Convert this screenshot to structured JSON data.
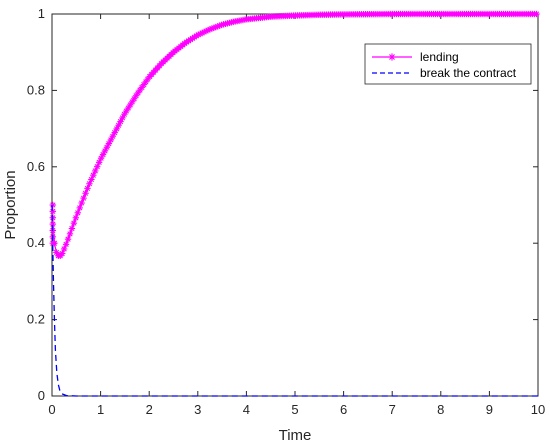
{
  "chart_data": {
    "type": "line",
    "title": "",
    "xlabel": "Time",
    "ylabel": "Proportion",
    "xlim": [
      0,
      10
    ],
    "ylim": [
      0,
      1
    ],
    "xticks": [
      0,
      1,
      2,
      3,
      4,
      5,
      6,
      7,
      8,
      9,
      10
    ],
    "xtick_labels": [
      "0",
      "1",
      "2",
      "3",
      "4",
      "5",
      "6",
      "7",
      "8",
      "9",
      "10"
    ],
    "yticks": [
      0,
      0.2,
      0.4,
      0.6,
      0.8,
      1
    ],
    "ytick_labels": [
      "0",
      "0.2",
      "0.4",
      "0.6",
      "0.8",
      "1"
    ],
    "grid": false,
    "legend_position": "top-right",
    "series": [
      {
        "name": "lending",
        "color": "#ff00ff",
        "line_style": "solid",
        "marker": "asterisk",
        "x": [
          0,
          0.05,
          0.1,
          0.15,
          0.2,
          0.3,
          0.5,
          0.75,
          1,
          1.25,
          1.5,
          1.75,
          2,
          2.25,
          2.5,
          2.75,
          3,
          3.25,
          3.5,
          3.75,
          4,
          4.5,
          5,
          5.5,
          6,
          7,
          8,
          9,
          10
        ],
        "y": [
          0.5,
          0.4,
          0.37,
          0.365,
          0.37,
          0.4,
          0.47,
          0.55,
          0.62,
          0.68,
          0.74,
          0.79,
          0.835,
          0.87,
          0.9,
          0.925,
          0.945,
          0.96,
          0.972,
          0.98,
          0.986,
          0.993,
          0.996,
          0.998,
          0.999,
          1,
          1,
          1,
          1
        ]
      },
      {
        "name": "break the contract",
        "color": "#0000ff",
        "line_style": "dashed",
        "marker": "none",
        "x": [
          0,
          0.03,
          0.05,
          0.07,
          0.1,
          0.13,
          0.16,
          0.2,
          0.3,
          0.5,
          1,
          2,
          3,
          4,
          5,
          6,
          7,
          8,
          9,
          10
        ],
        "y": [
          0.5,
          0.3,
          0.2,
          0.12,
          0.06,
          0.03,
          0.015,
          0.006,
          0.001,
          0,
          0,
          0,
          0,
          0,
          0,
          0,
          0,
          0,
          0,
          0
        ]
      }
    ]
  }
}
